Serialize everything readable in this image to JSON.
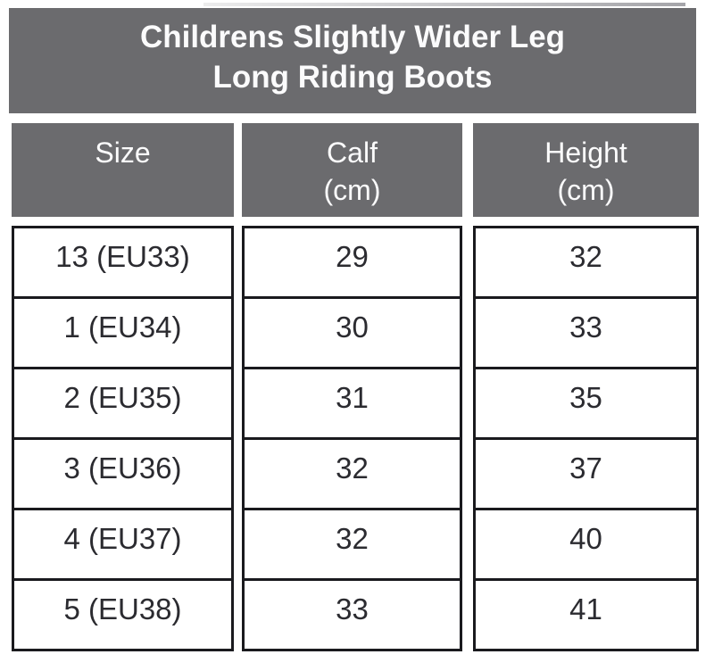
{
  "title": {
    "line1": "Childrens Slightly Wider Leg",
    "line2": "Long Riding Boots"
  },
  "headers": {
    "size": {
      "label": "Size"
    },
    "calf": {
      "label": "Calf",
      "sub": "(cm)"
    },
    "height": {
      "label": "Height",
      "sub": "(cm)"
    }
  },
  "rows": [
    {
      "size": "13 (EU33)",
      "calf": "29",
      "height": "32"
    },
    {
      "size": "1 (EU34)",
      "calf": "30",
      "height": "33"
    },
    {
      "size": "2 (EU35)",
      "calf": "31",
      "height": "35"
    },
    {
      "size": "3 (EU36)",
      "calf": "32",
      "height": "37"
    },
    {
      "size": "4 (EU37)",
      "calf": "32",
      "height": "40"
    },
    {
      "size": "5 (EU38)",
      "calf": "33",
      "height": "41"
    }
  ],
  "chart_data": {
    "type": "table",
    "title": "Childrens Slightly Wider Leg Long Riding Boots",
    "columns": [
      "Size",
      "Calf (cm)",
      "Height (cm)"
    ],
    "rows": [
      [
        "13 (EU33)",
        29,
        32
      ],
      [
        "1 (EU34)",
        30,
        33
      ],
      [
        "2 (EU35)",
        31,
        35
      ],
      [
        "3 (EU36)",
        32,
        37
      ],
      [
        "4 (EU37)",
        32,
        40
      ],
      [
        "5 (EU38)",
        33,
        41
      ]
    ]
  },
  "colors": {
    "header_bg": "#6b6b6e",
    "header_text": "#fbfbfc",
    "cell_text": "#2b2b30",
    "border": "#1a1a1e",
    "background": "#ffffff"
  }
}
